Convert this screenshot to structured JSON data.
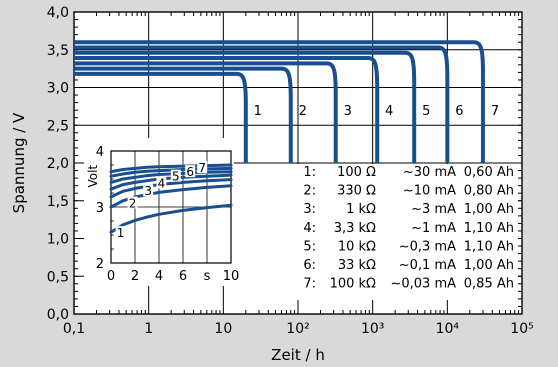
{
  "chart_data": {
    "type": "line",
    "title": "",
    "xlabel": "Zeit / h",
    "ylabel": "Spannung / V",
    "xscale": "log",
    "xlim": [
      0.1,
      100000
    ],
    "ylim": [
      0.0,
      4.0
    ],
    "x_ticks": [
      {
        "value": 0.1,
        "label": "0,1"
      },
      {
        "value": 1,
        "label": "1"
      },
      {
        "value": 10,
        "label": "10"
      },
      {
        "value": 100,
        "label": "10²"
      },
      {
        "value": 1000,
        "label": "10³"
      },
      {
        "value": 10000,
        "label": "10⁴"
      },
      {
        "value": 100000,
        "label": "10⁵"
      }
    ],
    "y_ticks": [
      {
        "value": 0.0,
        "label": "0,0"
      },
      {
        "value": 0.5,
        "label": "0,5"
      },
      {
        "value": 1.0,
        "label": "1,0"
      },
      {
        "value": 1.5,
        "label": "1,5"
      },
      {
        "value": 2.0,
        "label": "2,0"
      },
      {
        "value": 2.5,
        "label": "2,5"
      },
      {
        "value": 3.0,
        "label": "3,0"
      },
      {
        "value": 3.5,
        "label": "3,5"
      },
      {
        "value": 4.0,
        "label": "4,0"
      }
    ],
    "grid": true,
    "line_color": "#1a4f8f",
    "series": [
      {
        "name": "1",
        "plateau_v": 3.18,
        "end_h": 20,
        "end_v": 2.0
      },
      {
        "name": "2",
        "plateau_v": 3.25,
        "end_h": 80,
        "end_v": 2.0
      },
      {
        "name": "3",
        "plateau_v": 3.32,
        "end_h": 320,
        "end_v": 2.0
      },
      {
        "name": "4",
        "plateau_v": 3.39,
        "end_h": 1150,
        "end_v": 2.0
      },
      {
        "name": "5",
        "plateau_v": 3.46,
        "end_h": 3600,
        "end_v": 2.0
      },
      {
        "name": "6",
        "plateau_v": 3.53,
        "end_h": 10000,
        "end_v": 2.0
      },
      {
        "name": "7",
        "plateau_v": 3.6,
        "end_h": 30000,
        "end_v": 2.0
      }
    ],
    "legend_rows": [
      {
        "n": "1:",
        "r": "100 Ω",
        "i": "~30 mA",
        "c": "0,60 Ah"
      },
      {
        "n": "2:",
        "r": "330 Ω",
        "i": "~10 mA",
        "c": "0,80 Ah"
      },
      {
        "n": "3:",
        "r": "1 kΩ",
        "i": "~3 mA",
        "c": "1,00 Ah"
      },
      {
        "n": "4:",
        "r": "3,3 kΩ",
        "i": "~1 mA",
        "c": "1,10 Ah"
      },
      {
        "n": "5:",
        "r": "10 kΩ",
        "i": "~0,3 mA",
        "c": "1,10 Ah"
      },
      {
        "n": "6:",
        "r": "33 kΩ",
        "i": "~0,1 mA",
        "c": "1,00 Ah"
      },
      {
        "n": "7:",
        "r": "100 kΩ",
        "i": "~0,03 mA",
        "c": "0,85 Ah"
      }
    ],
    "inset": {
      "xlabel_unit": "s",
      "ylabel": "Volt",
      "xlim": [
        0,
        10
      ],
      "ylim": [
        2,
        4
      ],
      "x_ticks": [
        0,
        2,
        4,
        6,
        8,
        10
      ],
      "x_tick_labels": [
        "0",
        "2",
        "4",
        "6",
        "s",
        "10"
      ],
      "y_ticks": [
        2,
        3,
        4
      ],
      "y_tick_labels": [
        "2",
        "3",
        "4"
      ],
      "series": [
        {
          "name": "1",
          "points": [
            [
              0,
              2.55
            ],
            [
              1,
              2.68
            ],
            [
              2,
              2.76
            ],
            [
              3,
              2.82
            ],
            [
              4,
              2.87
            ],
            [
              6,
              2.94
            ],
            [
              8,
              2.99
            ],
            [
              10,
              3.03
            ]
          ]
        },
        {
          "name": "2",
          "points": [
            [
              0,
              3.0
            ],
            [
              1,
              3.11
            ],
            [
              2,
              3.18
            ],
            [
              3,
              3.22
            ],
            [
              4,
              3.26
            ],
            [
              6,
              3.31
            ],
            [
              8,
              3.35
            ],
            [
              10,
              3.38
            ]
          ]
        },
        {
          "name": "3",
          "points": [
            [
              0,
              3.18
            ],
            [
              1,
              3.28
            ],
            [
              2,
              3.33
            ],
            [
              3,
              3.37
            ],
            [
              4,
              3.4
            ],
            [
              6,
              3.44
            ],
            [
              8,
              3.47
            ],
            [
              10,
              3.49
            ]
          ]
        },
        {
          "name": "4",
          "points": [
            [
              0,
              3.32
            ],
            [
              1,
              3.4
            ],
            [
              2,
              3.44
            ],
            [
              3,
              3.47
            ],
            [
              4,
              3.5
            ],
            [
              6,
              3.53
            ],
            [
              8,
              3.55
            ],
            [
              10,
              3.57
            ]
          ]
        },
        {
          "name": "5",
          "points": [
            [
              0,
              3.44
            ],
            [
              1,
              3.5
            ],
            [
              2,
              3.53
            ],
            [
              3,
              3.56
            ],
            [
              4,
              3.58
            ],
            [
              6,
              3.6
            ],
            [
              8,
              3.62
            ],
            [
              10,
              3.63
            ]
          ]
        },
        {
          "name": "6",
          "points": [
            [
              0,
              3.55
            ],
            [
              1,
              3.59
            ],
            [
              2,
              3.62
            ],
            [
              3,
              3.64
            ],
            [
              4,
              3.65
            ],
            [
              6,
              3.67
            ],
            [
              8,
              3.68
            ],
            [
              10,
              3.69
            ]
          ]
        },
        {
          "name": "7",
          "points": [
            [
              0,
              3.63
            ],
            [
              1,
              3.67
            ],
            [
              2,
              3.69
            ],
            [
              3,
              3.71
            ],
            [
              4,
              3.72
            ],
            [
              6,
              3.73
            ],
            [
              8,
              3.74
            ],
            [
              10,
              3.75
            ]
          ]
        }
      ],
      "labels": [
        {
          "name": "1",
          "x": 0.8,
          "y": 2.55
        },
        {
          "name": "2",
          "x": 1.8,
          "y": 3.08
        },
        {
          "name": "3",
          "x": 3.1,
          "y": 3.3
        },
        {
          "name": "4",
          "x": 4.2,
          "y": 3.44
        },
        {
          "name": "5",
          "x": 5.4,
          "y": 3.56
        },
        {
          "name": "6",
          "x": 6.6,
          "y": 3.64
        },
        {
          "name": "7",
          "x": 7.6,
          "y": 3.71
        }
      ]
    }
  }
}
